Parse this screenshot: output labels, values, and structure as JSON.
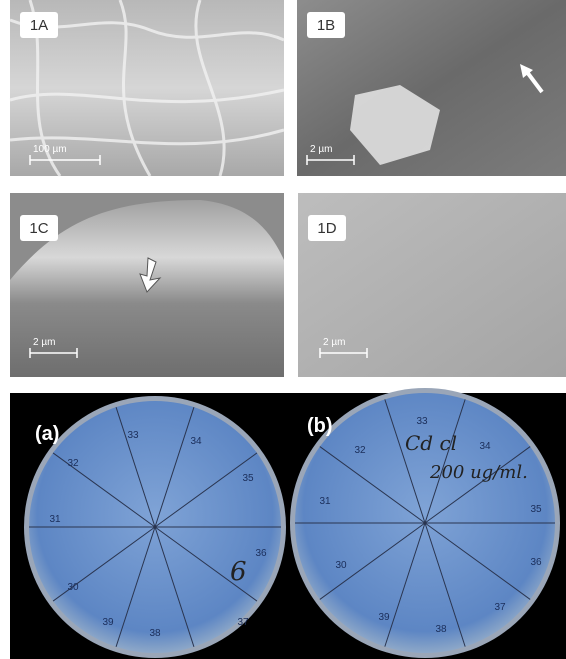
{
  "panels": [
    {
      "label": "1A",
      "scale": "100 µm"
    },
    {
      "label": "1B",
      "scale": "2 µm"
    },
    {
      "label": "1C",
      "scale": "2 µm"
    },
    {
      "label": "1D",
      "scale": "2 µm"
    }
  ],
  "dishes": [
    {
      "label": "(a)",
      "sectors": [
        "33",
        "34",
        "35",
        "36",
        "37",
        "38",
        "39",
        "30",
        "31",
        "32"
      ],
      "handwriting": [
        "6"
      ]
    },
    {
      "label": "(b)",
      "sectors": [
        "33",
        "34",
        "35",
        "36",
        "37",
        "38",
        "39",
        "30",
        "31",
        "32"
      ],
      "handwriting": [
        "Cd cl",
        "200 ug/ml."
      ]
    }
  ]
}
